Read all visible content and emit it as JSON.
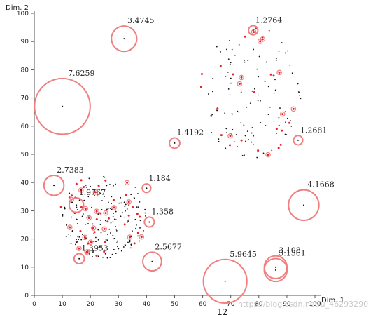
{
  "chart_data": {
    "type": "scatter",
    "xlabel": "Dim. 1",
    "ylabel": "Dim. 2",
    "xlim": [
      0,
      100
    ],
    "ylim": [
      0,
      100
    ],
    "xticks": [
      0,
      10,
      20,
      30,
      40,
      50,
      60,
      70,
      80,
      90,
      100
    ],
    "yticks": [
      0,
      10,
      20,
      30,
      40,
      50,
      60,
      70,
      80,
      90,
      100
    ],
    "grid": false,
    "colors": {
      "point": "#111111",
      "marker": "#e8202a",
      "ring": "#f08080",
      "axis": "#555555"
    },
    "bottom_text": "12",
    "watermark": "https://blog.csdn.net/u_46293290",
    "labeled_clusters": [
      {
        "label": "3.4745",
        "x": 32,
        "y": 91,
        "radius": 3.4745
      },
      {
        "label": "7.6259",
        "x": 10,
        "y": 67,
        "radius": 7.6259
      },
      {
        "label": "1.2764",
        "x": 78,
        "y": 94,
        "radius": 1.2764
      },
      {
        "label": "1.4192",
        "x": 50,
        "y": 54,
        "radius": 1.4192
      },
      {
        "label": "1.2681",
        "x": 94,
        "y": 55,
        "radius": 1.2681
      },
      {
        "label": "2.7383",
        "x": 7,
        "y": 39,
        "radius": 2.7383
      },
      {
        "label": "1.184",
        "x": 40,
        "y": 38,
        "radius": 1.184
      },
      {
        "label": "1.9767",
        "x": 15,
        "y": 32,
        "radius": 1.9767
      },
      {
        "label": "4.1668",
        "x": 96,
        "y": 32,
        "radius": 4.1668
      },
      {
        "label": "1.358",
        "x": 41,
        "y": 26,
        "radius": 1.358
      },
      {
        "label": "2.5677",
        "x": 42,
        "y": 12,
        "radius": 2.5677
      },
      {
        "label": "1.3953",
        "x": 16,
        "y": 13,
        "radius": 1.3953
      },
      {
        "label": "5.9645",
        "x": 68,
        "y": 5,
        "radius": 5.9645
      },
      {
        "label": "3.108",
        "x": 86,
        "y": 10,
        "radius": 3.108
      },
      {
        "label": "3.1361",
        "x": 86,
        "y": 9,
        "radius": 3.1361
      }
    ],
    "point_clouds": [
      {
        "name": "cluster-upper-right",
        "cx": 77,
        "cy": 72,
        "rx": 18,
        "ry": 24,
        "n_points": 110,
        "n_marked": 30
      },
      {
        "name": "cluster-lower-left",
        "cx": 25,
        "cy": 28,
        "rx": 16,
        "ry": 15,
        "n_points": 170,
        "n_marked": 50
      }
    ]
  }
}
